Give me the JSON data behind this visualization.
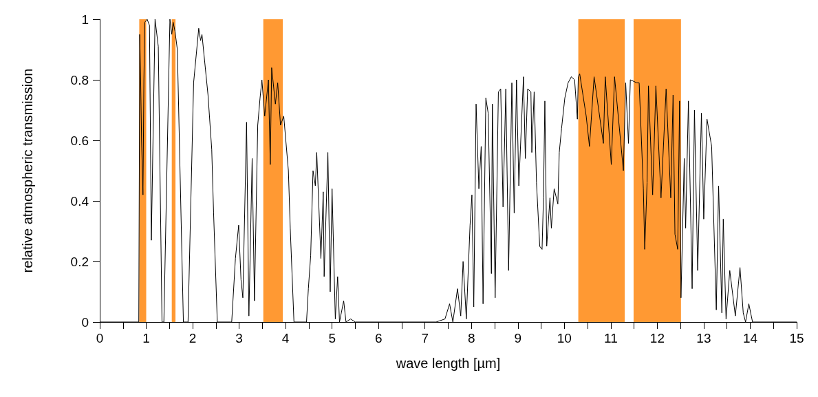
{
  "chart_data": {
    "type": "line",
    "xlabel": "wave length [µm]",
    "ylabel": "relative atmospheric transmission",
    "xlim": [
      0,
      15
    ],
    "ylim": [
      0,
      1
    ],
    "xticks": [
      0,
      {
        "value": 0.5,
        "label": null
      },
      1,
      {
        "value": 1.5,
        "label": null
      },
      2,
      {
        "value": 2.5,
        "label": null
      },
      3,
      {
        "value": 3.5,
        "label": null
      },
      4,
      {
        "value": 4.5,
        "label": null
      },
      5,
      {
        "value": 5.5,
        "label": null
      },
      6,
      {
        "value": 6.5,
        "label": null
      },
      7,
      {
        "value": 7.5,
        "label": null
      },
      8,
      {
        "value": 8.5,
        "label": null
      },
      9,
      {
        "value": 9.5,
        "label": null
      },
      10,
      {
        "value": 10.5,
        "label": null
      },
      11,
      {
        "value": 11.5,
        "label": null
      },
      12,
      {
        "value": 12.5,
        "label": null
      },
      13,
      {
        "value": 13.5,
        "label": null
      },
      14,
      {
        "value": 14.5,
        "label": null
      },
      15
    ],
    "yticks": [
      0,
      0.2,
      0.4,
      0.6,
      0.8,
      1
    ],
    "grid": false,
    "marker": "none",
    "bands": [
      {
        "axis": "x",
        "from": 0.85,
        "to": 1.0,
        "color": "#ff9933"
      },
      {
        "axis": "x",
        "from": 1.55,
        "to": 1.63,
        "color": "#ff9933"
      },
      {
        "axis": "x",
        "from": 3.52,
        "to": 3.94,
        "color": "#ff9933"
      },
      {
        "axis": "x",
        "from": 10.3,
        "to": 11.3,
        "color": "#ff9933"
      },
      {
        "axis": "x",
        "from": 11.49,
        "to": 12.51,
        "color": "#ff9933"
      }
    ],
    "series": [
      {
        "color": "#000000",
        "x": [
          0,
          0.84,
          0.86,
          0.88,
          0.9,
          0.93,
          0.95,
          0.97,
          1.02,
          1.07,
          1.11,
          1.19,
          1.26,
          1.34,
          1.38,
          1.51,
          1.55,
          1.58,
          1.62,
          1.67,
          1.8,
          1.9,
          2.02,
          2.13,
          2.17,
          2.2,
          2.33,
          2.41,
          2.45,
          2.53,
          2.84,
          2.92,
          2.99,
          3.04,
          3.08,
          3.16,
          3.21,
          3.28,
          3.33,
          3.4,
          3.45,
          3.49,
          3.55,
          3.63,
          3.67,
          3.7,
          3.78,
          3.83,
          3.89,
          3.96,
          4.06,
          4.1,
          4.18,
          4.45,
          4.49,
          4.54,
          4.59,
          4.64,
          4.67,
          4.76,
          4.81,
          4.83,
          4.91,
          4.96,
          5.0,
          5.07,
          5.12,
          5.16,
          5.25,
          5.3,
          5.4,
          5.5,
          7.24,
          7.43,
          7.53,
          7.6,
          7.7,
          7.77,
          7.82,
          7.89,
          7.97,
          8.01,
          8.05,
          8.1,
          8.16,
          8.21,
          8.25,
          8.31,
          8.36,
          8.43,
          8.45,
          8.51,
          8.58,
          8.63,
          8.68,
          8.74,
          8.8,
          8.87,
          8.92,
          8.97,
          9.02,
          9.12,
          9.16,
          9.21,
          9.28,
          9.3,
          9.35,
          9.4,
          9.47,
          9.52,
          9.55,
          9.58,
          9.62,
          9.69,
          9.72,
          9.78,
          9.86,
          9.89,
          9.94,
          10.01,
          10.08,
          10.15,
          10.22,
          10.28,
          10.3,
          10.33,
          10.47,
          10.54,
          10.64,
          10.84,
          10.88,
          11.01,
          11.08,
          11.27,
          11.32,
          11.38,
          11.42,
          11.56,
          11.61,
          11.7,
          11.73,
          11.78,
          11.81,
          11.9,
          11.97,
          12.08,
          12.19,
          12.29,
          12.34,
          12.38,
          12.44,
          12.48,
          12.51,
          12.58,
          12.61,
          12.67,
          12.75,
          12.8,
          12.87,
          12.95,
          13.0,
          13.07,
          13.17,
          13.27,
          13.32,
          13.39,
          13.42,
          13.48,
          13.56,
          13.68,
          13.78,
          13.85,
          13.9,
          13.97,
          14.05,
          15
        ],
        "values": [
          0,
          0,
          0.95,
          0.8,
          0.6,
          0.42,
          0.8,
          0.99,
          1.0,
          0.98,
          0.27,
          1.0,
          0.91,
          0,
          0,
          1.0,
          0.95,
          0.99,
          0.96,
          0.9,
          0,
          0,
          0.79,
          0.97,
          0.93,
          0.95,
          0.75,
          0.57,
          0.36,
          0,
          0,
          0.21,
          0.32,
          0.14,
          0.08,
          0.66,
          0.02,
          0.54,
          0.07,
          0.65,
          0.74,
          0.8,
          0.68,
          0.8,
          0.52,
          0.84,
          0.72,
          0.79,
          0.65,
          0.68,
          0.5,
          0.31,
          0,
          0,
          0.11,
          0.22,
          0.5,
          0.45,
          0.56,
          0.21,
          0.43,
          0.15,
          0.56,
          0.1,
          0.44,
          0.01,
          0.15,
          0,
          0.07,
          0,
          0.01,
          0,
          0,
          0.01,
          0.06,
          0,
          0.11,
          0.02,
          0.2,
          0.01,
          0.32,
          0.42,
          0.05,
          0.72,
          0.44,
          0.58,
          0.06,
          0.74,
          0.69,
          0.16,
          0.72,
          0.08,
          0.76,
          0.77,
          0.38,
          0.77,
          0.17,
          0.79,
          0.36,
          0.8,
          0.45,
          0.81,
          0.54,
          0.77,
          0.76,
          0.56,
          0.76,
          0.46,
          0.25,
          0.24,
          0.41,
          0.73,
          0.25,
          0.41,
          0.31,
          0.44,
          0.39,
          0.56,
          0.64,
          0.74,
          0.79,
          0.81,
          0.8,
          0.67,
          0.81,
          0.82,
          0.68,
          0.58,
          0.81,
          0.59,
          0.81,
          0.52,
          0.81,
          0.5,
          0.79,
          0.59,
          0.8,
          0.79,
          0.79,
          0.44,
          0.24,
          0.46,
          0.78,
          0.42,
          0.78,
          0.41,
          0.77,
          0.41,
          0.75,
          0.29,
          0.24,
          0.73,
          0.08,
          0.54,
          0.31,
          0.73,
          0.11,
          0.7,
          0.17,
          0.69,
          0.34,
          0.67,
          0.58,
          0.04,
          0.45,
          0.03,
          0.34,
          0.01,
          0.17,
          0.02,
          0.18,
          0.03,
          0,
          0.06,
          0,
          0
        ]
      }
    ]
  }
}
